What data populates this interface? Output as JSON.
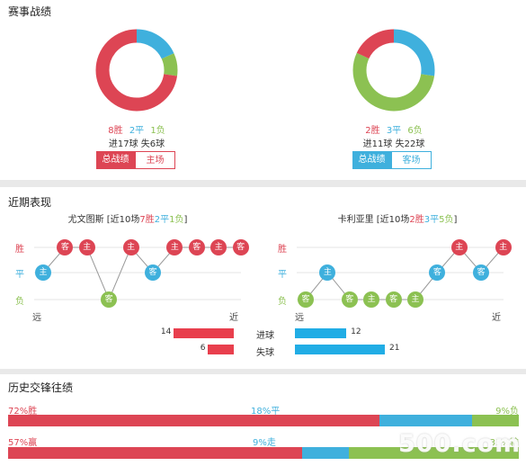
{
  "colors": {
    "win": "#dd4554",
    "draw": "#3fb0dd",
    "loss": "#8cc152",
    "goal_left": "#e83f4d",
    "goal_right": "#21ade5",
    "grid": "#e6e6e6",
    "line": "#999999"
  },
  "section1": {
    "title": "赛事战绩",
    "left": {
      "pie": {
        "win": 8,
        "draw": 2,
        "loss": 1
      },
      "wdl": {
        "win": "8胜",
        "draw": "2平",
        "loss": "1负"
      },
      "goals": {
        "scored": "进17球",
        "conceded": "失6球"
      },
      "tab_active": "总战绩",
      "tab_other": "主场"
    },
    "right": {
      "pie": {
        "win": 2,
        "draw": 3,
        "loss": 6
      },
      "wdl": {
        "win": "2胜",
        "draw": "3平",
        "loss": "6负"
      },
      "goals": {
        "scored": "进11球",
        "conceded": "失22球"
      },
      "tab_active": "总战绩",
      "tab_other": "客场"
    }
  },
  "section2": {
    "title": "近期表现",
    "y_labels": {
      "win": "胜",
      "draw": "平",
      "loss": "负"
    },
    "end_labels": {
      "far": "远",
      "near": "近"
    },
    "left": {
      "head": {
        "name": "尤文图斯",
        "open": " [近10场",
        "w": "7胜",
        "d": "2平",
        "l": "1负",
        "close": "]"
      },
      "matches": [
        {
          "r": "draw",
          "t": "主"
        },
        {
          "r": "win",
          "t": "客"
        },
        {
          "r": "win",
          "t": "主"
        },
        {
          "r": "loss",
          "t": "客"
        },
        {
          "r": "win",
          "t": "主"
        },
        {
          "r": "draw",
          "t": "客"
        },
        {
          "r": "win",
          "t": "主"
        },
        {
          "r": "win",
          "t": "客"
        },
        {
          "r": "win",
          "t": "主"
        },
        {
          "r": "win",
          "t": "客"
        }
      ]
    },
    "right": {
      "head": {
        "name": "卡利亚里",
        "open": " [近10场",
        "w": "2胜",
        "d": "3平",
        "l": "5负",
        "close": "]"
      },
      "matches": [
        {
          "r": "loss",
          "t": "客"
        },
        {
          "r": "draw",
          "t": "主"
        },
        {
          "r": "loss",
          "t": "客"
        },
        {
          "r": "loss",
          "t": "主"
        },
        {
          "r": "loss",
          "t": "客"
        },
        {
          "r": "loss",
          "t": "主"
        },
        {
          "r": "draw",
          "t": "客"
        },
        {
          "r": "win",
          "t": "主"
        },
        {
          "r": "draw",
          "t": "客"
        },
        {
          "r": "win",
          "t": "主"
        }
      ]
    },
    "goals": {
      "scored_label": "进球",
      "conceded_label": "失球",
      "left_scored": 14,
      "left_conceded": 6,
      "right_scored": 12,
      "right_conceded": 21
    }
  },
  "section3": {
    "title": "历史交锋往绩",
    "row1": {
      "win_pct": 72,
      "draw_pct": 18,
      "loss_pct": 9,
      "win_label": "72%胜",
      "draw_label": "18%平",
      "loss_label": "9%负"
    },
    "row2": {
      "win_pct": 57,
      "draw_pct": 9,
      "loss_pct": 33,
      "win_label": "57%赢",
      "draw_label": "9%走",
      "loss_label": "33%输"
    }
  },
  "watermark": "500.com"
}
